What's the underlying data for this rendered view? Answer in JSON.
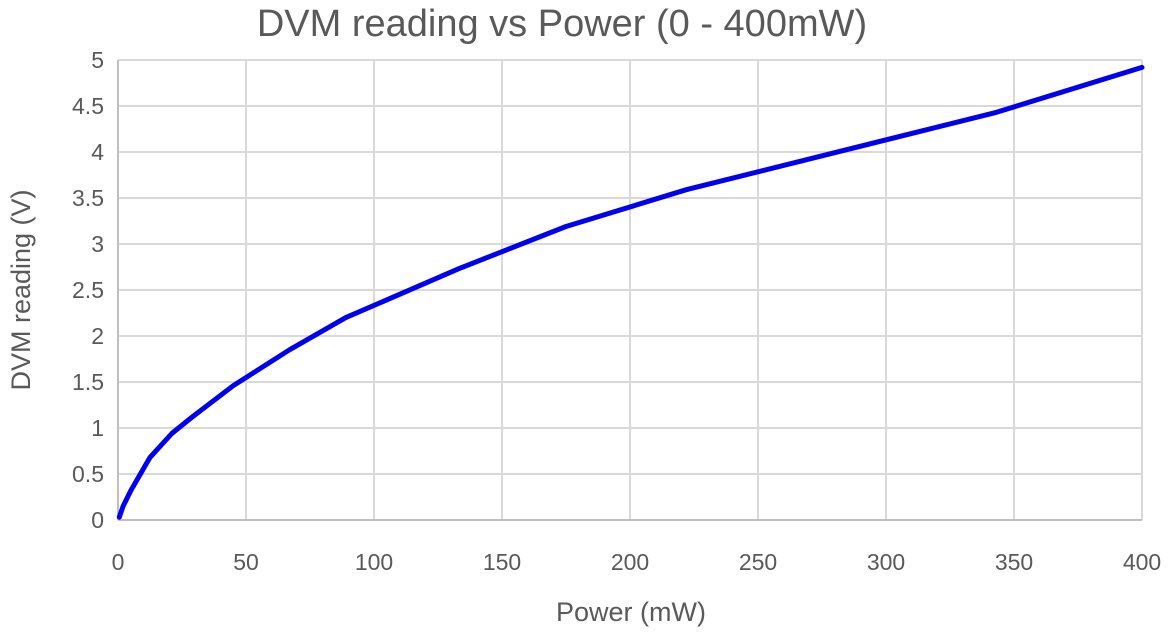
{
  "chart_data": {
    "type": "line",
    "title": "DVM reading vs Power (0 - 400mW)",
    "xlabel": "Power (mW)",
    "ylabel": "DVM reading (V)",
    "xlim": [
      0,
      400
    ],
    "ylim": [
      0,
      5
    ],
    "xticks": [
      0,
      50,
      100,
      150,
      200,
      250,
      300,
      350,
      400
    ],
    "yticks": [
      0,
      0.5,
      1,
      1.5,
      2,
      2.5,
      3,
      3.5,
      4,
      4.5,
      5
    ],
    "grid": true,
    "series": [
      {
        "color": "#0000ee",
        "x": [
          0.5,
          2,
          5,
          12.5,
          21,
          29,
          45,
          67,
          89,
          133,
          175,
          222,
          343,
          400
        ],
        "y": [
          0.03,
          0.15,
          0.32,
          0.68,
          0.94,
          1.12,
          1.46,
          1.85,
          2.2,
          2.73,
          3.19,
          3.59,
          4.43,
          4.92
        ]
      }
    ]
  }
}
